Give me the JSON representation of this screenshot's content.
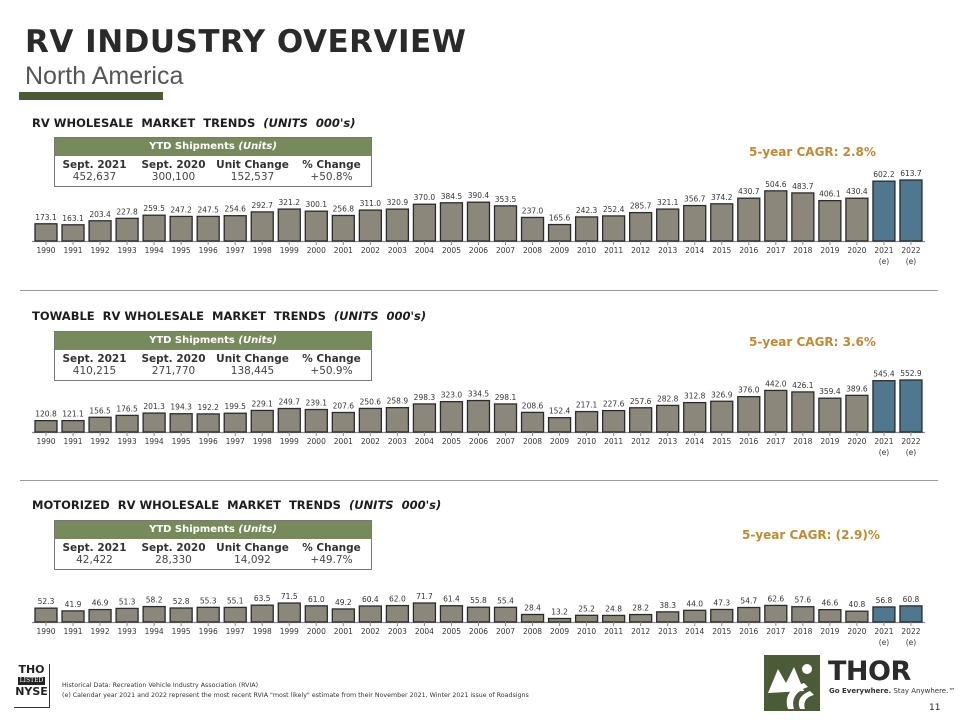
{
  "header": {
    "title": "RV INDUSTRY OVERVIEW",
    "subtitle": "North America"
  },
  "colors": {
    "accent_green": "#4b5a37",
    "table_header": "#778a5c",
    "bar_actual": "#8b877b",
    "bar_estimate": "#4f7790",
    "cagr_text": "#c08a32"
  },
  "ytd_table": {
    "header_main": "YTD Shipments ",
    "header_units": "(Units)",
    "columns": [
      "Sept. 2021",
      "Sept. 2020",
      "Unit Change",
      "% Change"
    ]
  },
  "sections": [
    {
      "title_main": "RV WHOLESALE  MARKET  TRENDS  ",
      "title_units": "(UNITS  000's)",
      "ytd_values": [
        "452,637",
        "300,100",
        "152,537",
        "+50.8%"
      ],
      "cagr": "5-year CAGR:  2.8%"
    },
    {
      "title_main": "TOWABLE  RV WHOLESALE  MARKET  TRENDS  ",
      "title_units": "(UNITS  000's)",
      "ytd_values": [
        "410,215",
        "271,770",
        "138,445",
        "+50.9%"
      ],
      "cagr": "5-year CAGR:  3.6%"
    },
    {
      "title_main": "MOTORIZED  RV WHOLESALE  MARKET  TRENDS  ",
      "title_units": "(UNITS  000's)",
      "ytd_values": [
        "42,422",
        "28,330",
        "14,092",
        "+49.7%"
      ],
      "cagr": "5-year CAGR:  (2.9)%"
    }
  ],
  "chart_data": [
    {
      "type": "bar",
      "title": "RV Wholesale Market Trends (Units 000's)",
      "xlabel": "",
      "ylabel": "",
      "categories": [
        "1990",
        "1991",
        "1992",
        "1993",
        "1994",
        "1995",
        "1996",
        "1997",
        "1998",
        "1999",
        "2000",
        "2001",
        "2002",
        "2003",
        "2004",
        "2005",
        "2006",
        "2007",
        "2008",
        "2009",
        "2010",
        "2011",
        "2012",
        "2013",
        "2014",
        "2015",
        "2016",
        "2017",
        "2018",
        "2019",
        "2020",
        "2021 (e)",
        "2022 (e)"
      ],
      "values": [
        173.1,
        163.1,
        203.4,
        227.8,
        259.5,
        247.2,
        247.5,
        254.6,
        292.7,
        321.2,
        300.1,
        256.8,
        311.0,
        320.9,
        370.0,
        384.5,
        390.4,
        353.5,
        237.0,
        165.6,
        242.3,
        252.4,
        285.7,
        321.1,
        356.7,
        374.2,
        430.7,
        504.6,
        483.7,
        406.1,
        430.4,
        602.2,
        613.7
      ],
      "labels": [
        "173.1",
        "163.1",
        "203.4",
        "227.8",
        "259.5",
        "247.2",
        "247.5",
        "254.6",
        "292.7",
        "321.2",
        "300.1",
        "256.8",
        "311.0",
        "320.9",
        "370.0",
        "384.5",
        "390.4",
        "353.5",
        "237.0",
        "165.6",
        "242.3",
        "252.4",
        "285.7",
        "321.1",
        "356.7",
        "374.2",
        "430.7",
        "504.6",
        "483.7",
        "406.1",
        "430.4",
        "602.2",
        "613.7"
      ],
      "estimate_from_index": 31,
      "grid": false,
      "annotation": "5-year CAGR:  2.8%"
    },
    {
      "type": "bar",
      "title": "Towable RV Wholesale Market Trends (Units 000's)",
      "xlabel": "",
      "ylabel": "",
      "categories": [
        "1990",
        "1991",
        "1992",
        "1993",
        "1994",
        "1995",
        "1996",
        "1997",
        "1998",
        "1999",
        "2000",
        "2001",
        "2002",
        "2003",
        "2004",
        "2005",
        "2006",
        "2007",
        "2008",
        "2009",
        "2010",
        "2011",
        "2012",
        "2013",
        "2014",
        "2015",
        "2016",
        "2017",
        "2018",
        "2019",
        "2020",
        "2021 (e)",
        "2022 (e)"
      ],
      "values": [
        120.8,
        121.1,
        156.5,
        176.5,
        201.3,
        194.3,
        192.2,
        199.5,
        229.1,
        249.7,
        239.1,
        207.6,
        250.6,
        258.9,
        298.3,
        323.0,
        334.5,
        298.1,
        208.6,
        152.4,
        217.1,
        227.6,
        257.6,
        282.8,
        312.8,
        326.9,
        376.0,
        442.0,
        426.1,
        359.4,
        389.6,
        545.4,
        552.9
      ],
      "labels": [
        "120.8",
        "121.1",
        "156.5",
        "176.5",
        "201.3",
        "194.3",
        "192.2",
        "199.5",
        "229.1",
        "249.7",
        "239.1",
        "207.6",
        "250.6",
        "258.9",
        "298.3",
        "323.0",
        "334.5",
        "298.1",
        "208.6",
        "152.4",
        "217.1",
        "227.6",
        "257.6",
        "282.8",
        "312.8",
        "326.9",
        "376.0",
        "442.0",
        "426.1",
        "359.4",
        "389.6",
        "545.4",
        "552.9"
      ],
      "estimate_from_index": 31,
      "grid": false,
      "annotation": "5-year CAGR:  3.6%"
    },
    {
      "type": "bar",
      "title": "Motorized RV Wholesale Market Trends (Units 000's)",
      "xlabel": "",
      "ylabel": "",
      "categories": [
        "1990",
        "1991",
        "1992",
        "1993",
        "1994",
        "1995",
        "1996",
        "1997",
        "1998",
        "1999",
        "2000",
        "2001",
        "2002",
        "2003",
        "2004",
        "2005",
        "2006",
        "2007",
        "2008",
        "2009",
        "2010",
        "2011",
        "2012",
        "2013",
        "2014",
        "2015",
        "2016",
        "2017",
        "2018",
        "2019",
        "2020",
        "2021 (e)",
        "2022 (e)"
      ],
      "values": [
        52.3,
        41.9,
        46.9,
        51.3,
        58.2,
        52.8,
        55.3,
        55.1,
        63.5,
        71.5,
        61.0,
        49.2,
        60.4,
        62.0,
        71.7,
        61.4,
        55.8,
        55.4,
        28.4,
        13.2,
        25.2,
        24.8,
        28.2,
        38.3,
        44.0,
        47.3,
        54.7,
        62.6,
        57.6,
        46.6,
        40.8,
        56.8,
        60.8
      ],
      "labels": [
        "52.3",
        "41.9",
        "46.9",
        "51.3",
        "58.2",
        "52.8",
        "55.3",
        "55.1",
        "63.5",
        "71.5",
        "61.0",
        "49.2",
        "60.4",
        "62.0",
        "71.7",
        "61.4",
        "55.8",
        "55.4",
        "28.4",
        "13.2",
        "25.2",
        "24.8",
        "28.2",
        "38.3",
        "44.0",
        "47.3",
        "54.7",
        "62.6",
        "57.6",
        "46.6",
        "40.8",
        "56.8",
        "60.8"
      ],
      "estimate_from_index": 31,
      "grid": false,
      "annotation": "5-year CAGR:  (2.9)%"
    }
  ],
  "footer": {
    "exchange_ticker": "THO",
    "exchange_listed": "LISTED",
    "exchange_name": "NYSE",
    "note_1": "Historical Data: Recreation Vehicle Industry Association (RVIA)",
    "note_2": "(e) Calendar year 2021 and 2022 represent the most recent RVIA \"most likely\" estimate from their November 2021,  Winter 2021 issue of Roadsigns",
    "brand": "THOR",
    "tagline_bold": "Go Everywhere.",
    "tagline_rest": " Stay Anywhere.™",
    "page_number": "11"
  }
}
